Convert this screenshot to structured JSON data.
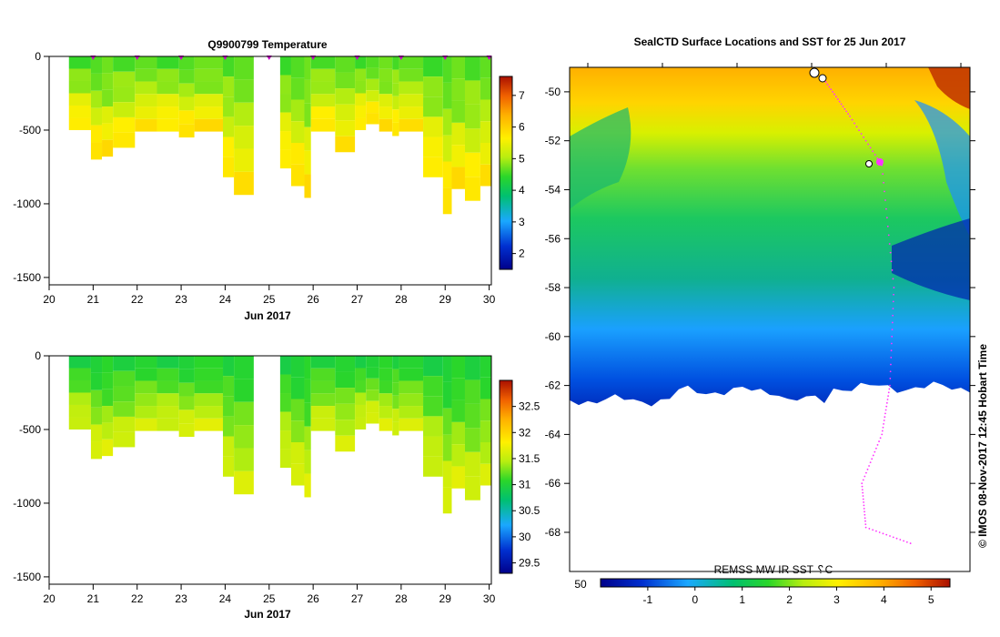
{
  "colors": {
    "profile_marker": "#cc00cc",
    "track": "#ff33ff",
    "land": "#ffffff",
    "axis": "#000000"
  },
  "chart_data": [
    {
      "type": "heatmap",
      "title": "Q9900799  Temperature",
      "xlabel": "Jun 2017",
      "ylabel": "",
      "x_ticks": [
        "20",
        "21",
        "22",
        "23",
        "24",
        "25",
        "26",
        "27",
        "28",
        "29",
        "30"
      ],
      "xlim": [
        20,
        30.05
      ],
      "y_ticks": [
        "0",
        "-500",
        "-1000",
        "-1500"
      ],
      "ylim": [
        -1550,
        0
      ],
      "colorbar_ticks": [
        "2",
        "3",
        "4",
        "5",
        "6",
        "7"
      ],
      "colorbar_range": [
        1.5,
        7.6
      ],
      "profile_marker_days": [
        21,
        22,
        23,
        24,
        25,
        26,
        27,
        28,
        29,
        30
      ],
      "profile_start_days": [
        20.45,
        20.95,
        21.2,
        21.45,
        21.95,
        22.45,
        22.95,
        23.3,
        23.95,
        24.2,
        25.25,
        25.5,
        25.8,
        25.95,
        26.5,
        26.95,
        27.2,
        27.5,
        27.8,
        27.95,
        28.5,
        28.95,
        29.15,
        29.45,
        29.8
      ],
      "profile_end_days": [
        20.95,
        21.2,
        21.45,
        21.95,
        22.45,
        22.95,
        23.3,
        23.95,
        24.2,
        24.65,
        25.5,
        25.8,
        25.95,
        26.5,
        26.95,
        27.2,
        27.5,
        27.8,
        27.95,
        28.5,
        28.95,
        29.15,
        29.45,
        29.8,
        30.05
      ],
      "profile_max_depths": [
        500,
        700,
        680,
        620,
        510,
        510,
        550,
        510,
        820,
        940,
        760,
        880,
        960,
        510,
        650,
        500,
        460,
        510,
        540,
        510,
        820,
        1070,
        900,
        980,
        880
      ],
      "layer_values": [
        4.6,
        4.8,
        4.9,
        5.3,
        5.6,
        5.8
      ]
    },
    {
      "type": "heatmap",
      "title": "",
      "xlabel": "Jun 2017",
      "ylabel": "",
      "x_ticks": [
        "20",
        "21",
        "22",
        "23",
        "24",
        "25",
        "26",
        "27",
        "28",
        "29",
        "30"
      ],
      "xlim": [
        20,
        30.05
      ],
      "y_ticks": [
        "0",
        "-500",
        "-1000",
        "-1500"
      ],
      "ylim": [
        -1550,
        0
      ],
      "colorbar_ticks": [
        "29.5",
        "30",
        "30.5",
        "31",
        "31.5",
        "32",
        "32.5"
      ],
      "colorbar_range": [
        29.3,
        33.0
      ],
      "profile_start_days": [
        20.45,
        20.95,
        21.2,
        21.45,
        21.95,
        22.45,
        22.95,
        23.3,
        23.95,
        24.2,
        25.25,
        25.5,
        25.8,
        25.95,
        26.5,
        26.95,
        27.2,
        27.5,
        27.8,
        27.95,
        28.5,
        28.95,
        29.15,
        29.45,
        29.8
      ],
      "profile_end_days": [
        20.95,
        21.2,
        21.45,
        21.95,
        22.45,
        22.95,
        23.3,
        23.95,
        24.2,
        24.65,
        25.5,
        25.8,
        25.95,
        26.5,
        26.95,
        27.2,
        27.5,
        27.8,
        27.95,
        28.5,
        28.95,
        29.15,
        29.45,
        29.8,
        30.05
      ],
      "profile_max_depths": [
        500,
        700,
        680,
        620,
        510,
        510,
        550,
        510,
        820,
        940,
        760,
        880,
        960,
        510,
        650,
        500,
        460,
        510,
        540,
        510,
        820,
        1070,
        900,
        980,
        880
      ],
      "layer_values": [
        31.0,
        31.1,
        31.2,
        31.35,
        31.5,
        31.6
      ]
    },
    {
      "type": "heatmap",
      "title": "SealCTD Surface Locations and SST for 25 Jun 2017",
      "xlabel": "",
      "ylabel": "",
      "y_ticks": [
        "-50",
        "-52",
        "-54",
        "-56",
        "-58",
        "-60",
        "-62",
        "-64",
        "-66",
        "-68"
      ],
      "ylim": [
        -69.6,
        -49.0
      ],
      "colorbar_label": "REMSS MW IR SST ␦C",
      "colorbar_left_label": "50",
      "colorbar_ticks": [
        "-1",
        "0",
        "1",
        "2",
        "3",
        "4",
        "5"
      ],
      "colorbar_range": [
        -2.0,
        5.4
      ],
      "antarctic_coast_lat": -62.6,
      "seal_track": [
        {
          "lat": -49.6,
          "lon_frac": 0.64
        },
        {
          "lat": -51.0,
          "lon_frac": 0.7
        },
        {
          "lat": -53.0,
          "lon_frac": 0.78
        },
        {
          "lat": -58.0,
          "lon_frac": 0.81
        },
        {
          "lat": -62.0,
          "lon_frac": 0.8
        },
        {
          "lat": -64.0,
          "lon_frac": 0.78
        },
        {
          "lat": -66.0,
          "lon_frac": 0.73
        },
        {
          "lat": -67.8,
          "lon_frac": 0.74
        },
        {
          "lat": -68.5,
          "lon_frac": 0.86
        }
      ]
    }
  ],
  "credit": "© IMOS 08-Nov-2017 12:45 Hobart Time"
}
